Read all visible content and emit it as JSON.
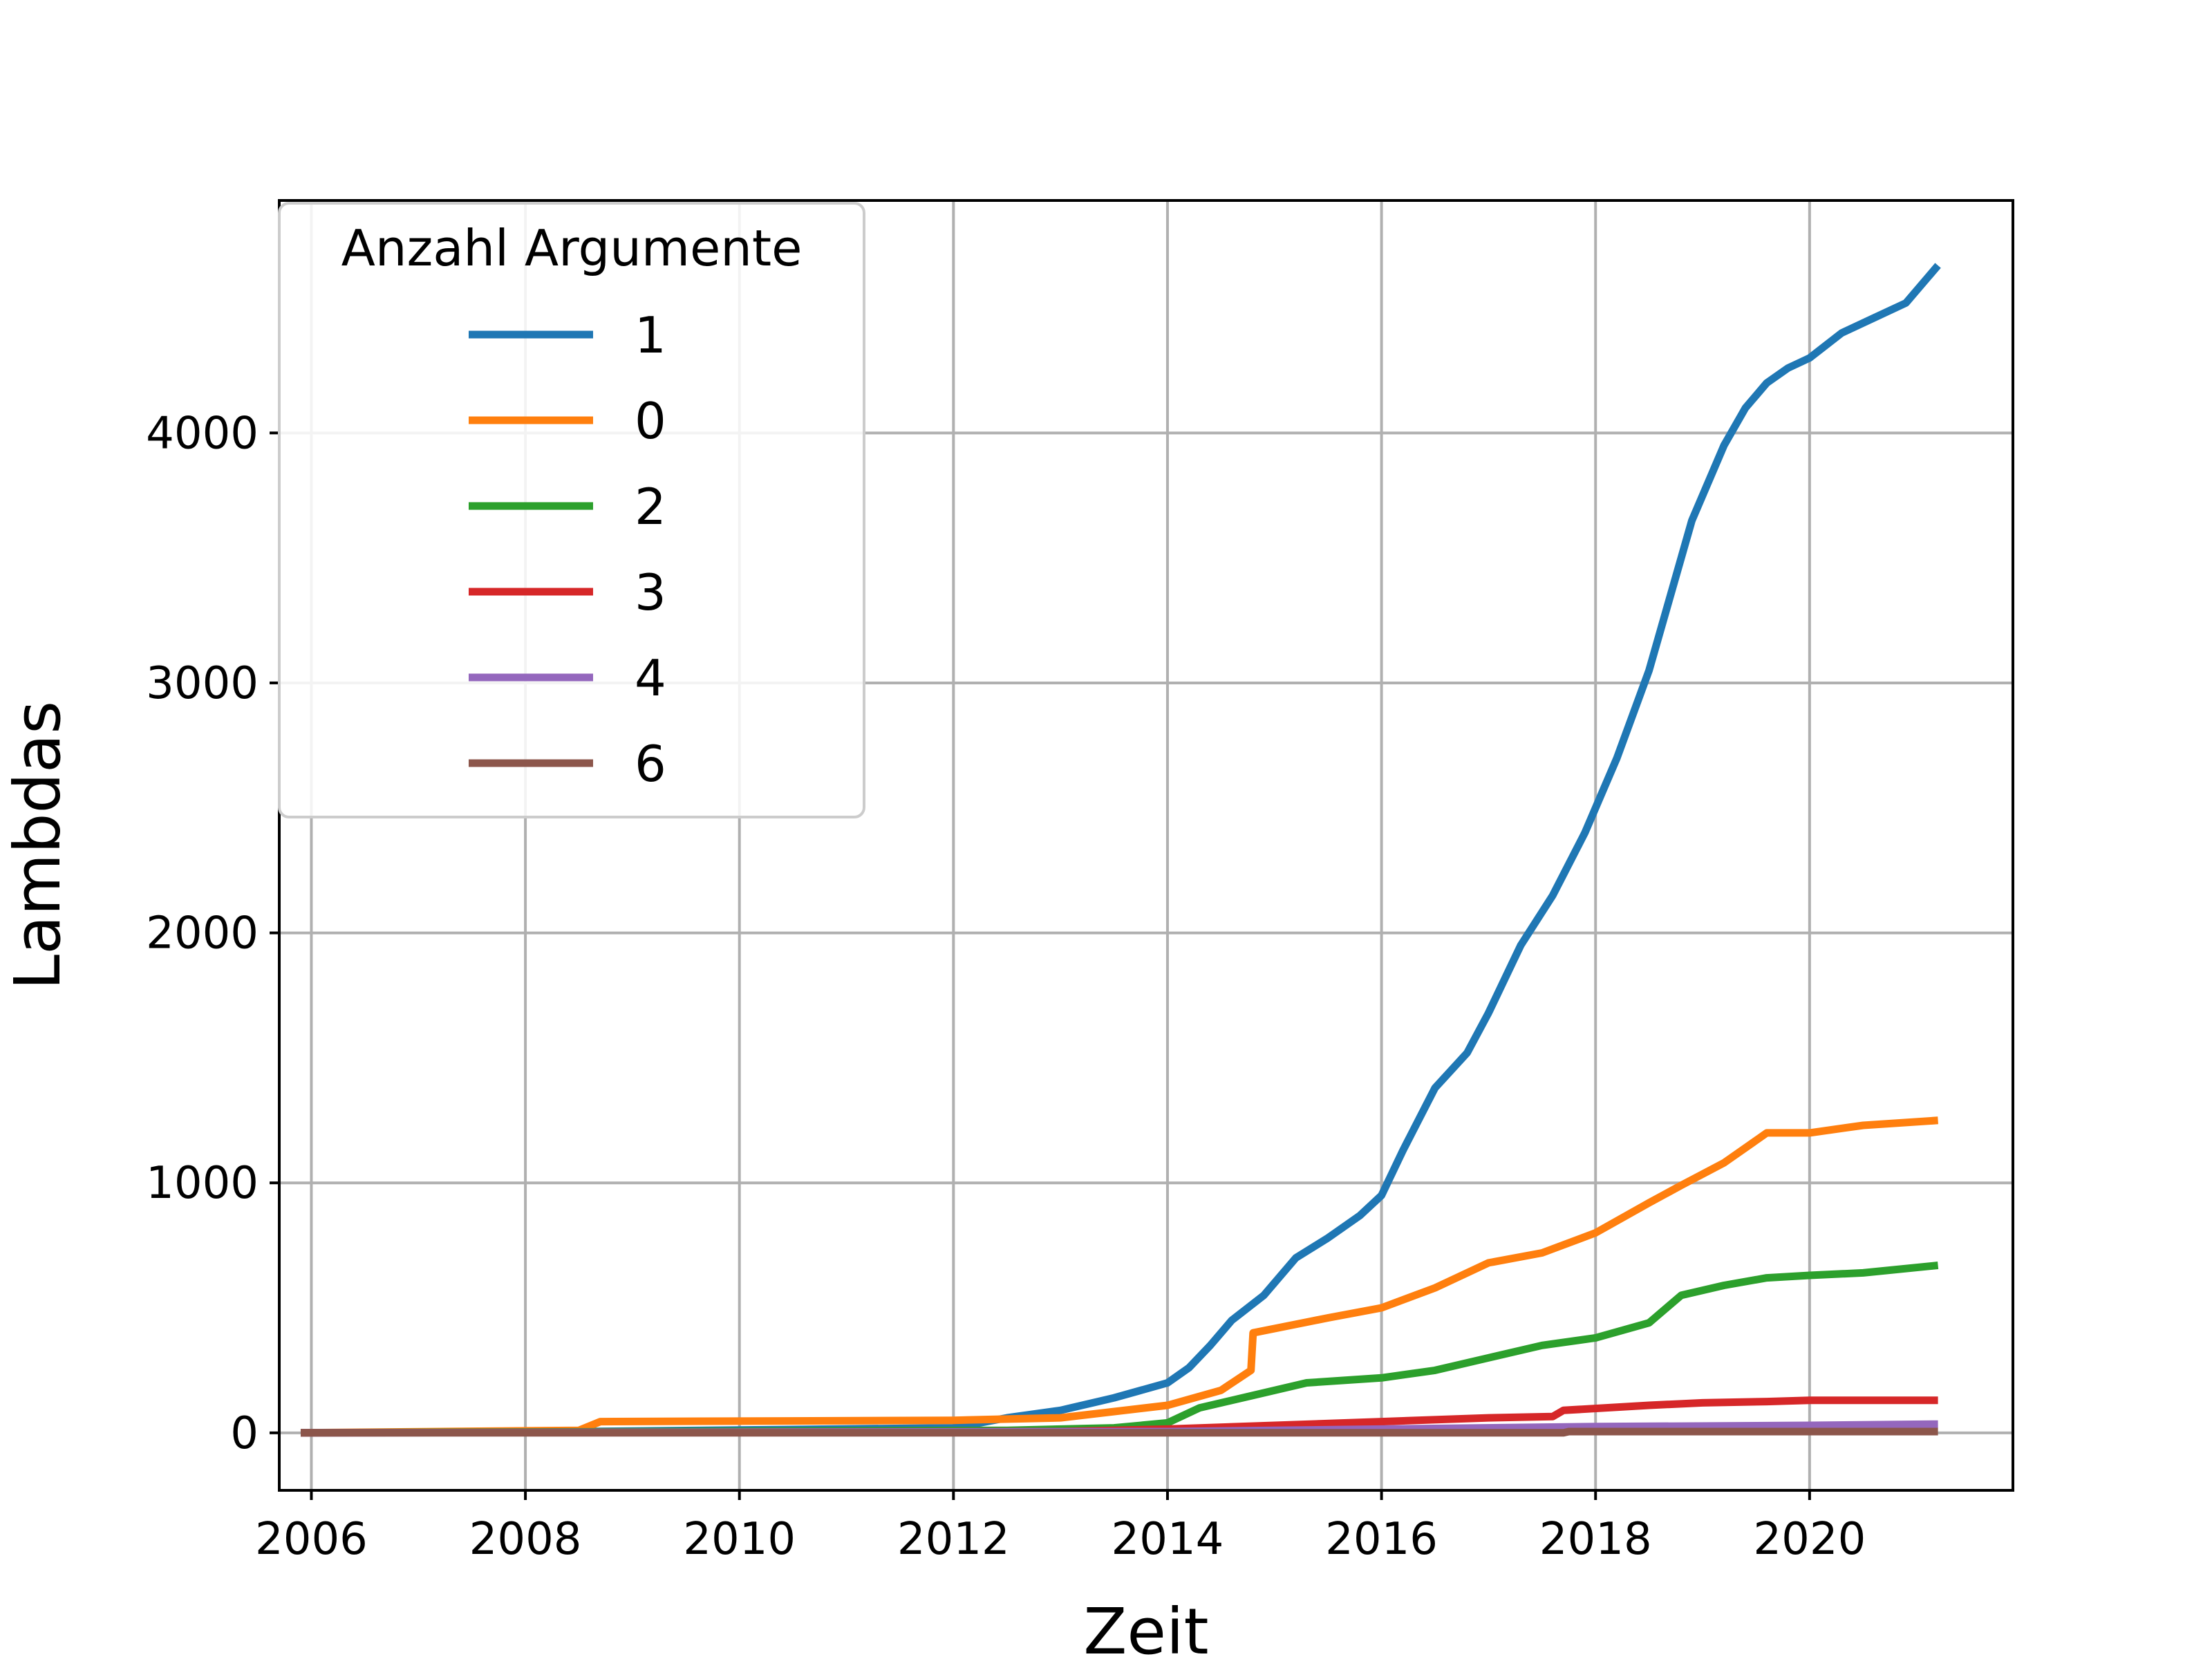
{
  "chart_data": {
    "type": "line",
    "title": "",
    "xlabel": "Zeit",
    "ylabel": "Lambdas",
    "xlim": [
      2005.7,
      2021.9
    ],
    "ylim": [
      -230,
      4930
    ],
    "xticks": [
      2006,
      2008,
      2010,
      2012,
      2014,
      2016,
      2018,
      2020
    ],
    "yticks": [
      0,
      1000,
      2000,
      3000,
      4000
    ],
    "grid": true,
    "legend": {
      "title": "Anzahl Argumente",
      "placement": "top-left"
    },
    "series": [
      {
        "name": "1",
        "color": "#1f77b4",
        "x": [
          2005.9,
          2008.5,
          2012.0,
          2012.5,
          2013.0,
          2013.5,
          2014.0,
          2014.2,
          2014.4,
          2014.6,
          2014.9,
          2015.2,
          2015.5,
          2015.8,
          2016.0,
          2016.2,
          2016.5,
          2016.8,
          2017.0,
          2017.3,
          2017.6,
          2017.9,
          2018.2,
          2018.5,
          2018.7,
          2018.9,
          2019.2,
          2019.4,
          2019.6,
          2019.8,
          2020.0,
          2020.3,
          2020.6,
          2020.9,
          2021.2
        ],
        "y": [
          0,
          5,
          20,
          60,
          90,
          140,
          200,
          260,
          350,
          450,
          550,
          700,
          780,
          870,
          950,
          1130,
          1380,
          1520,
          1680,
          1950,
          2150,
          2400,
          2700,
          3050,
          3350,
          3650,
          3950,
          4100,
          4200,
          4260,
          4300,
          4400,
          4460,
          4520,
          4670
        ]
      },
      {
        "name": "0",
        "color": "#ff7f0e",
        "x": [
          2005.9,
          2008.5,
          2008.7,
          2012.0,
          2013.0,
          2014.0,
          2014.5,
          2014.78,
          2014.8,
          2015.5,
          2016.0,
          2016.5,
          2017.0,
          2017.5,
          2018.0,
          2018.5,
          2018.8,
          2019.2,
          2019.6,
          2020.0,
          2020.5,
          2021.2
        ],
        "y": [
          0,
          10,
          45,
          50,
          60,
          110,
          170,
          250,
          400,
          460,
          500,
          580,
          680,
          720,
          800,
          920,
          990,
          1080,
          1200,
          1200,
          1230,
          1250
        ]
      },
      {
        "name": "2",
        "color": "#2ca02c",
        "x": [
          2005.9,
          2012.5,
          2013.5,
          2014.0,
          2014.3,
          2014.8,
          2015.3,
          2016.0,
          2016.5,
          2017.0,
          2017.5,
          2018.0,
          2018.5,
          2018.8,
          2019.2,
          2019.6,
          2020.0,
          2020.5,
          2021.2
        ],
        "y": [
          0,
          10,
          20,
          40,
          100,
          150,
          200,
          220,
          250,
          300,
          350,
          380,
          440,
          550,
          590,
          620,
          630,
          640,
          670
        ]
      },
      {
        "name": "3",
        "color": "#d62728",
        "x": [
          2005.9,
          2013.0,
          2014.0,
          2015.0,
          2016.0,
          2017.0,
          2017.6,
          2017.7,
          2018.5,
          2019.0,
          2019.6,
          2020.0,
          2021.2
        ],
        "y": [
          0,
          5,
          15,
          30,
          45,
          60,
          65,
          90,
          110,
          120,
          125,
          130,
          130
        ]
      },
      {
        "name": "4",
        "color": "#9467bd",
        "x": [
          2005.9,
          2014.0,
          2016.0,
          2018.0,
          2020.0,
          2021.2
        ],
        "y": [
          0,
          5,
          15,
          25,
          30,
          35
        ]
      },
      {
        "name": "6",
        "color": "#8c564b",
        "x": [
          2005.9,
          2017.7,
          2017.75,
          2021.2
        ],
        "y": [
          0,
          0,
          5,
          5
        ]
      }
    ]
  }
}
